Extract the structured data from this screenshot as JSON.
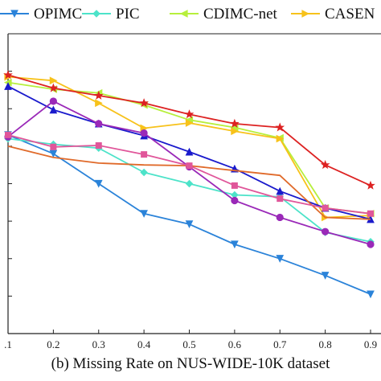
{
  "caption": "(b) Missing Rate on NUS-WIDE-10K dataset",
  "chart_data": {
    "type": "line",
    "x": [
      0.1,
      0.2,
      0.3,
      0.4,
      0.5,
      0.6,
      0.7,
      0.8,
      0.9
    ],
    "xtick_labels": [
      ".1",
      "0.2",
      "0.3",
      "0.4",
      "0.5",
      "0.6",
      "0.7",
      "0.8",
      "0.9"
    ],
    "xlim": [
      0.1,
      0.9
    ],
    "ylim": [
      0,
      8
    ],
    "grid": false,
    "legend_position": "top",
    "series": [
      {
        "name": "OPIMC",
        "color": "#2b83d9",
        "marker": "triangle-down",
        "values": [
          5.3,
          4.8,
          4.0,
          3.2,
          2.92,
          2.38,
          2.0,
          1.55,
          1.05
        ]
      },
      {
        "name": "PIC",
        "color": "#4de3c9",
        "marker": "diamond",
        "values": [
          5.2,
          5.05,
          4.95,
          4.3,
          4.0,
          3.7,
          3.65,
          2.7,
          2.45
        ]
      },
      {
        "name": "CDIMC-net",
        "color": "#b7ef3c",
        "marker": "triangle-left",
        "values": [
          6.7,
          6.52,
          6.42,
          6.1,
          5.7,
          5.5,
          5.22,
          3.35,
          3.2
        ]
      },
      {
        "name": "CASEN",
        "color": "#f7c21b",
        "marker": "triangle-right",
        "values": [
          6.85,
          6.75,
          6.15,
          5.48,
          5.62,
          5.4,
          5.2,
          3.1,
          3.15
        ]
      },
      {
        "name": "",
        "color": "#dd2222",
        "marker": "star",
        "values": [
          6.9,
          6.55,
          6.35,
          6.15,
          5.85,
          5.6,
          5.5,
          4.5,
          3.95
        ]
      },
      {
        "name": "",
        "color": "#1a1acc",
        "marker": "triangle-up",
        "values": [
          6.6,
          5.97,
          5.6,
          5.28,
          4.85,
          4.4,
          3.8,
          3.35,
          3.05
        ]
      },
      {
        "name": "",
        "color": "#9a29b8",
        "marker": "circle",
        "values": [
          5.25,
          6.2,
          5.6,
          5.35,
          4.45,
          3.55,
          3.1,
          2.72,
          2.38
        ]
      },
      {
        "name": "",
        "color": "#e06a2a",
        "marker": "none",
        "values": [
          5.0,
          4.7,
          4.55,
          4.5,
          4.48,
          4.35,
          4.22,
          3.1,
          3.05
        ]
      },
      {
        "name": "",
        "color": "#e0569a",
        "marker": "square",
        "values": [
          5.3,
          4.98,
          5.02,
          4.78,
          4.48,
          3.95,
          3.6,
          3.35,
          3.2
        ]
      }
    ]
  }
}
